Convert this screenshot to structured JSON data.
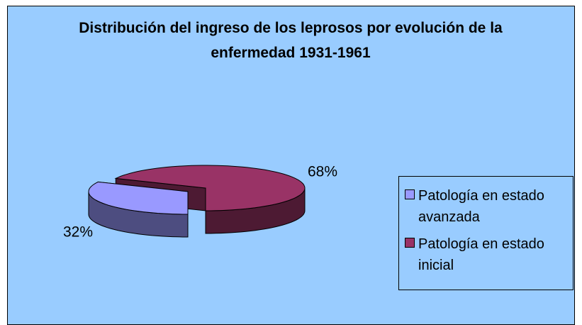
{
  "chart_data": {
    "type": "pie3d",
    "title": "Distribución del ingreso de los leprosos por evolución de la enfermedad 1931-1961",
    "categories": [
      "Patología en estado avanzada",
      "Patología en estado inicial"
    ],
    "values": [
      32,
      68
    ],
    "value_labels": [
      "32%",
      "68%"
    ],
    "colors": [
      "#9999ff",
      "#993366"
    ],
    "legend": "right"
  }
}
